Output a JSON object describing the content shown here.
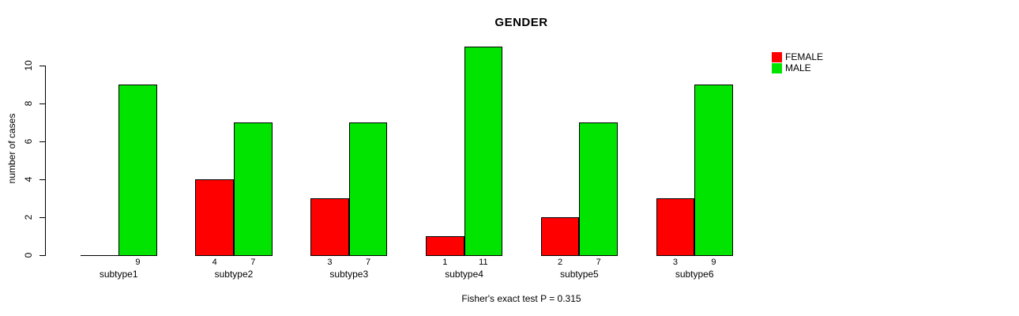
{
  "title": "GENDER",
  "ylabel": "number of cases",
  "footer": "Fisher's exact test P = 0.315",
  "colors": {
    "female": "#FF0000",
    "male": "#00E400",
    "axis": "#000000"
  },
  "legend": [
    {
      "label": "FEMALE",
      "color": "#FF0000"
    },
    {
      "label": "MALE",
      "color": "#00E400"
    }
  ],
  "chart_data": {
    "type": "bar",
    "title": "GENDER",
    "xlabel": "",
    "ylabel": "number of cases",
    "categories": [
      "subtype1",
      "subtype2",
      "subtype3",
      "subtype4",
      "subtype5",
      "subtype6"
    ],
    "series": [
      {
        "name": "FEMALE",
        "color": "#FF0000",
        "values": [
          0,
          4,
          3,
          1,
          2,
          3
        ],
        "value_labels": [
          "",
          "4",
          "3",
          "1",
          "2",
          "3"
        ]
      },
      {
        "name": "MALE",
        "color": "#00E400",
        "values": [
          9,
          7,
          7,
          11,
          7,
          9
        ],
        "value_labels": [
          "9",
          "7",
          "7",
          "11",
          "7",
          "9"
        ]
      }
    ],
    "yticks": [
      0,
      2,
      4,
      6,
      8,
      10
    ],
    "ylim": [
      0,
      11.2
    ],
    "grid": false,
    "legend_position": "top-right",
    "annotation": "Fisher's exact test P = 0.315"
  }
}
